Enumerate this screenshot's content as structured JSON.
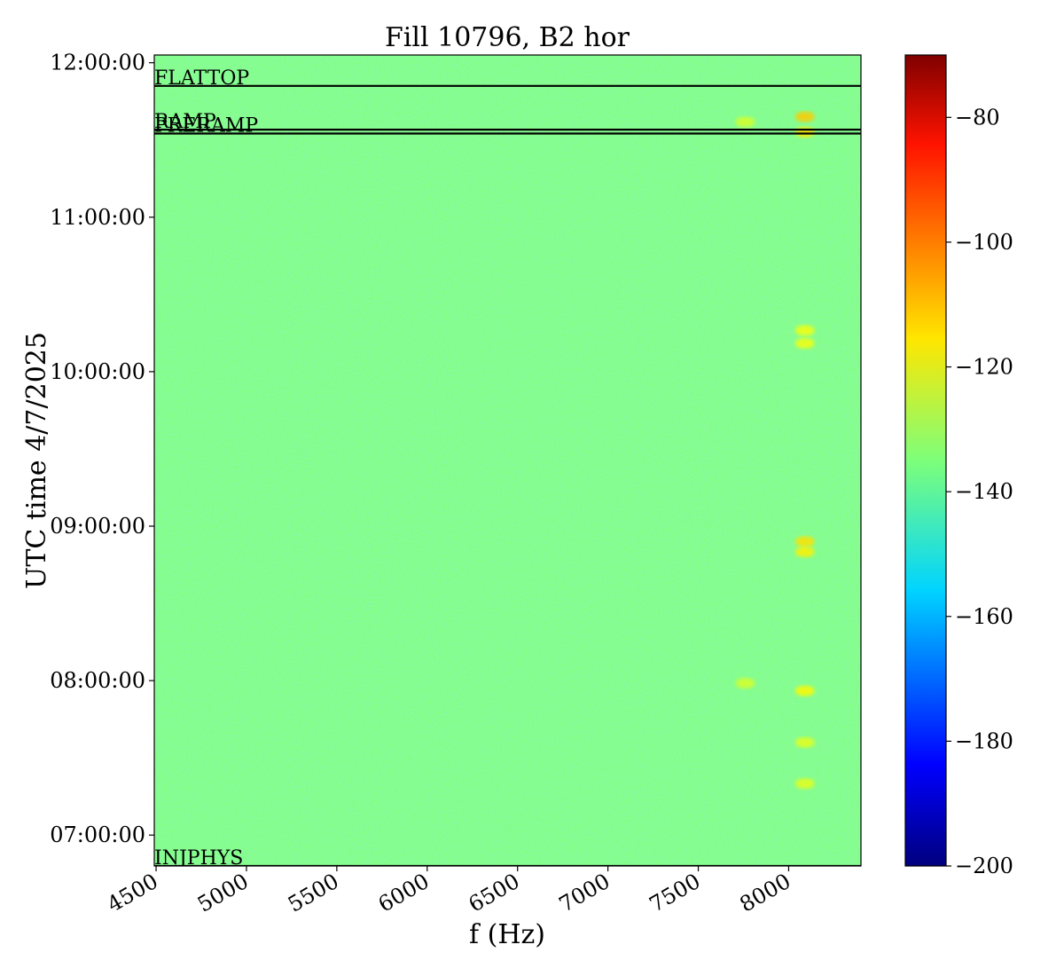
{
  "chart_data": {
    "type": "heatmap",
    "title": "Fill 10796, B2 hor",
    "xlabel": "f (Hz)",
    "ylabel": "UTC time 4/7/2025",
    "xlim": [
      4490,
      8400
    ],
    "ylim": [
      "06:48:00",
      "12:03:00"
    ],
    "x_ticks": [
      4500,
      5000,
      5500,
      6000,
      6500,
      7000,
      7500,
      8000
    ],
    "y_ticks": [
      "07:00:00",
      "08:00:00",
      "09:00:00",
      "10:00:00",
      "11:00:00",
      "12:00:00"
    ],
    "colorbar": {
      "colormap": "jet",
      "range": [
        -200,
        -70
      ],
      "ticks": [
        -200,
        -180,
        -160,
        -140,
        -120,
        -100,
        -80
      ]
    },
    "background_level": -135,
    "hot_spots": [
      {
        "f": 8090,
        "time": "11:39:00",
        "level": -112
      },
      {
        "f": 8090,
        "time": "11:33:00",
        "level": -116
      },
      {
        "f": 8090,
        "time": "10:11:00",
        "level": -120
      },
      {
        "f": 8090,
        "time": "10:16:00",
        "level": -120
      },
      {
        "f": 8090,
        "time": "08:54:00",
        "level": -115
      },
      {
        "f": 8090,
        "time": "08:50:00",
        "level": -117
      },
      {
        "f": 8090,
        "time": "07:56:00",
        "level": -118
      },
      {
        "f": 8090,
        "time": "07:36:00",
        "level": -122
      },
      {
        "f": 8090,
        "time": "07:20:00",
        "level": -122
      },
      {
        "f": 7760,
        "time": "11:37:00",
        "level": -124
      },
      {
        "f": 7760,
        "time": "07:59:00",
        "level": -124
      }
    ],
    "annotations": [
      {
        "label": "FLATTOP",
        "time": "11:51:00"
      },
      {
        "label": "RAMP",
        "time": "11:34:00"
      },
      {
        "label": "PRERAMP",
        "time": "11:32:30"
      },
      {
        "label": "INJPHYS",
        "time": "06:48:00"
      }
    ]
  }
}
